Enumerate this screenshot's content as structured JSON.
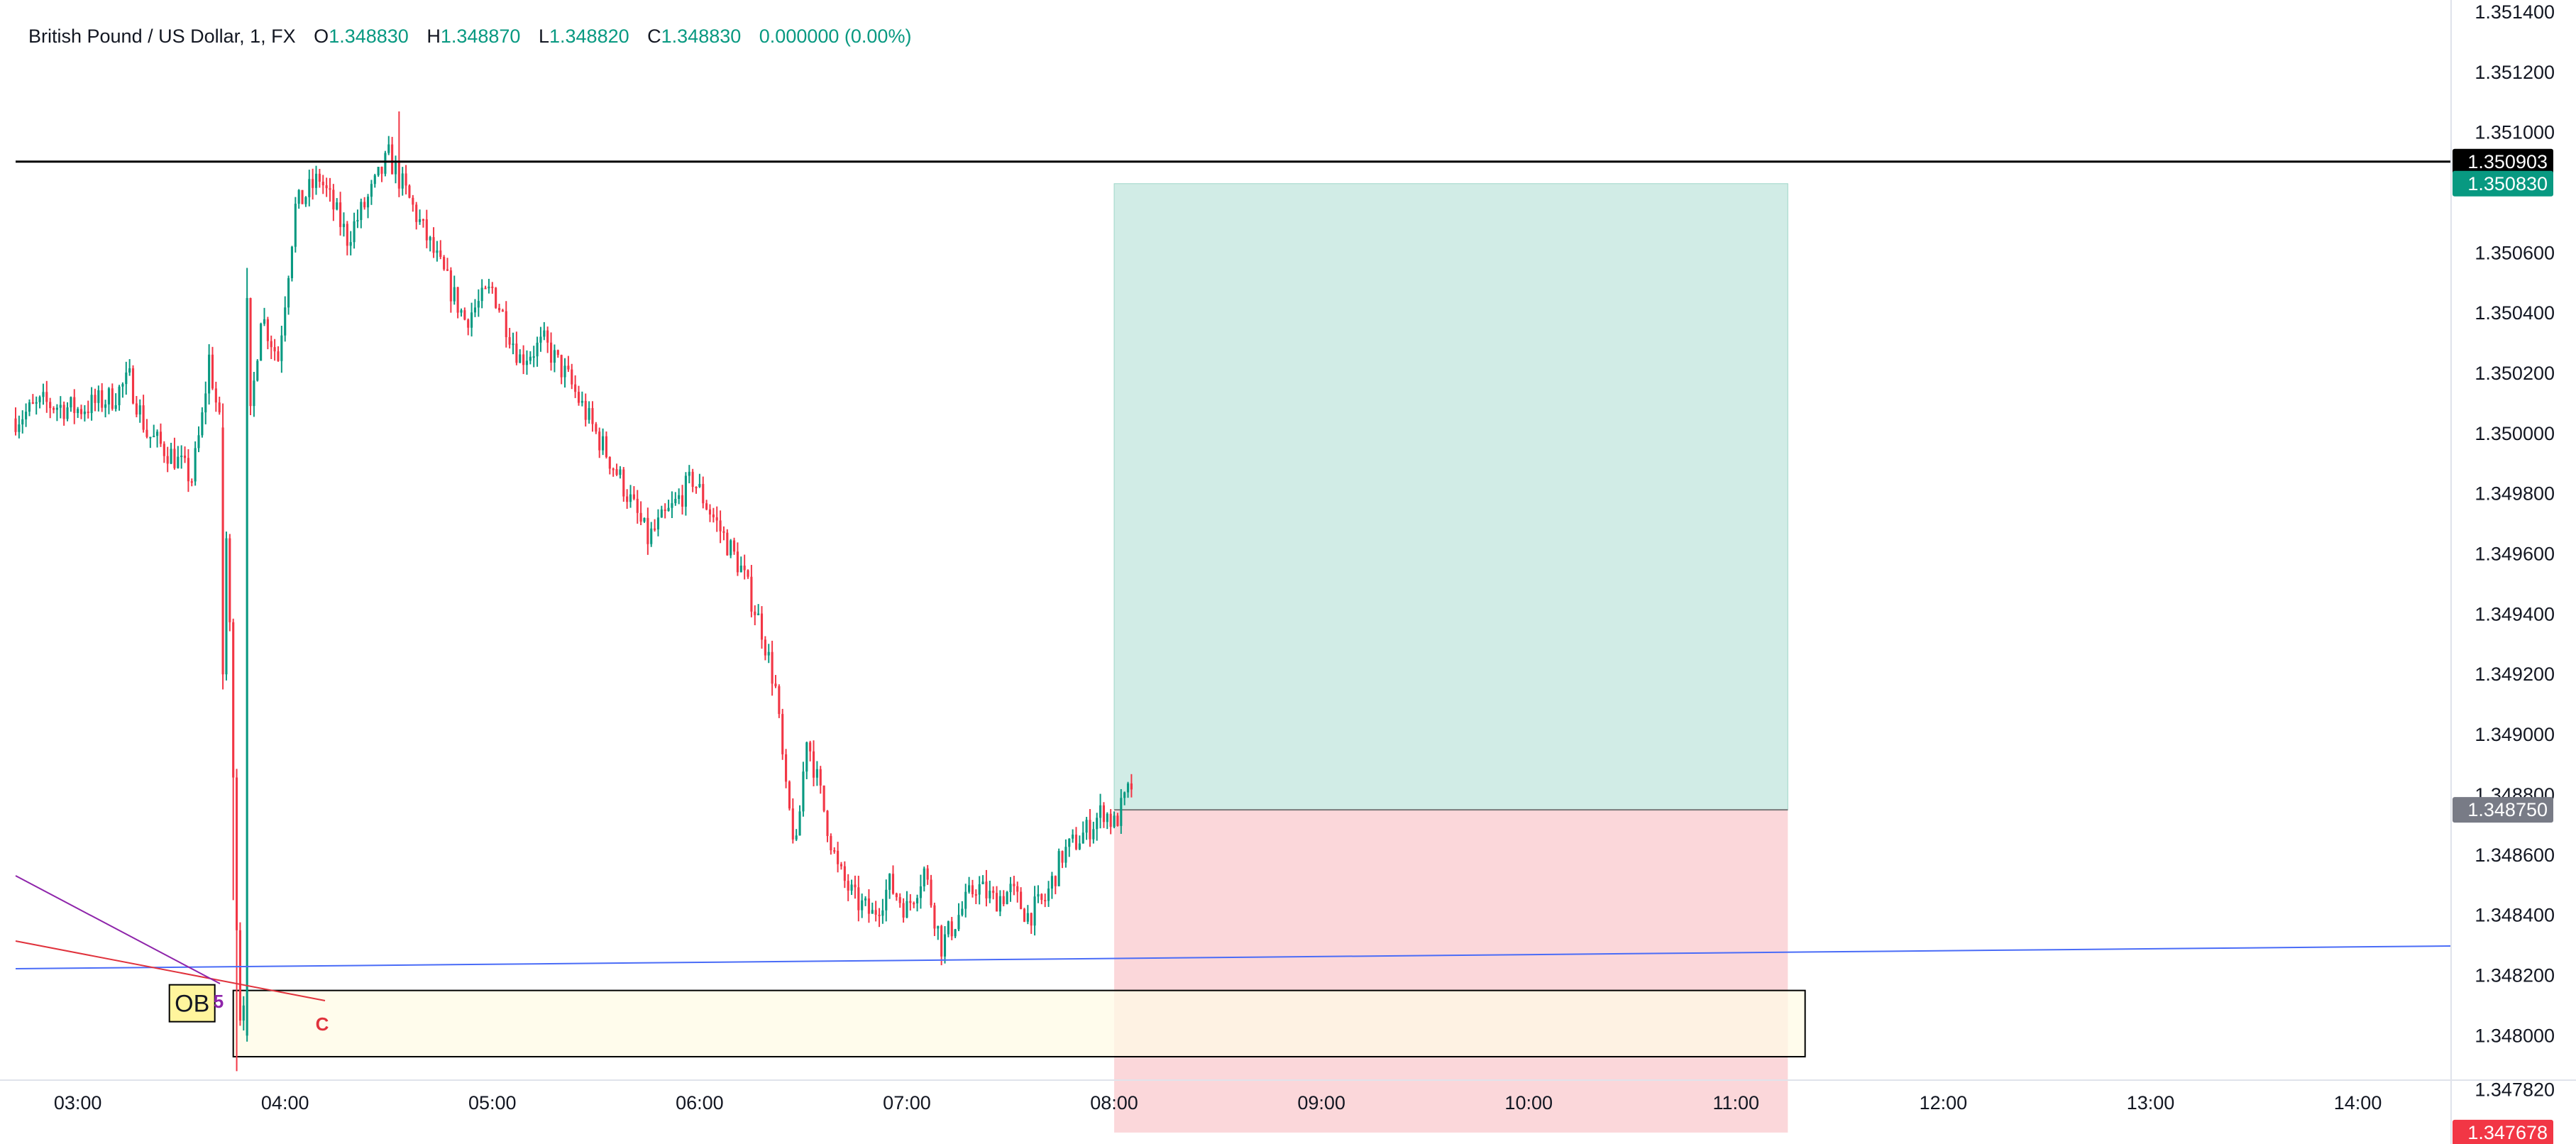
{
  "symbol": {
    "title": "British Pound / US Dollar, 1, FX",
    "open_label": "O",
    "open": "1.348830",
    "high_label": "H",
    "high": "1.348870",
    "low_label": "L",
    "low": "1.348820",
    "close_label": "C",
    "close": "1.348830",
    "change": "0.000000 (0.00%)"
  },
  "colors": {
    "up": "#089981",
    "down": "#f23645",
    "profit_zone": "#d1ece6",
    "loss_zone": "#fbd7da",
    "ob_fill": "#fffbe5",
    "trendline": "#4a6cf7",
    "wave_line_red": "#e0323c",
    "wave_line_purple": "#8e24aa"
  },
  "price_axis": {
    "ticks": [
      "1.351400",
      "1.351200",
      "1.351000",
      "1.350600",
      "1.350400",
      "1.350200",
      "1.350000",
      "1.349800",
      "1.349600",
      "1.349400",
      "1.349200",
      "1.349000",
      "1.348800",
      "1.348600",
      "1.348400",
      "1.348200",
      "1.348000",
      "1.347820"
    ]
  },
  "time_axis": {
    "ticks": [
      "03:00",
      "04:00",
      "05:00",
      "06:00",
      "07:00",
      "08:00",
      "09:00",
      "10:00",
      "11:00",
      "12:00",
      "13:00",
      "14:00"
    ]
  },
  "price_tags": {
    "horizontal_line": "1.350903",
    "take_profit": "1.350830",
    "entry": "1.348750",
    "stop_loss": "1.347678"
  },
  "annotations": {
    "order_block": "OB",
    "wave_5": "5",
    "wave_c": "C"
  },
  "chart_data": {
    "type": "candlestick",
    "symbol": "British Pound / US Dollar",
    "interval": "1",
    "x_range": [
      "02:42",
      "14:27"
    ],
    "y_range": [
      1.34764,
      1.35144
    ],
    "horizontal_line": 1.350903,
    "position": {
      "entry": 1.34875,
      "take_profit": 1.35083,
      "stop_loss": 1.347678,
      "start": "08:00",
      "end": "11:15"
    },
    "order_block": {
      "start": "03:45",
      "end": "11:20",
      "top": 1.34815,
      "bottom": 1.34793
    },
    "price_path": [
      {
        "t": "02:42",
        "p": 1.35005
      },
      {
        "t": "02:50",
        "p": 1.3501
      },
      {
        "t": "03:00",
        "p": 1.35008
      },
      {
        "t": "03:10",
        "p": 1.35012
      },
      {
        "t": "03:15",
        "p": 1.35018
      },
      {
        "t": "03:20",
        "p": 1.35
      },
      {
        "t": "03:28",
        "p": 1.34992
      },
      {
        "t": "03:33",
        "p": 1.34985
      },
      {
        "t": "03:36",
        "p": 1.35005
      },
      {
        "t": "03:38",
        "p": 1.35025
      },
      {
        "t": "03:41",
        "p": 1.35003
      },
      {
        "t": "03:43",
        "p": 1.34965
      },
      {
        "t": "03:44",
        "p": 1.34935
      },
      {
        "t": "03:45",
        "p": 1.3489
      },
      {
        "t": "03:46",
        "p": 1.34835
      },
      {
        "t": "03:47",
        "p": 1.34805
      },
      {
        "t": "03:48",
        "p": 1.3481
      },
      {
        "t": "03:49",
        "p": 1.3489
      },
      {
        "t": "03:50",
        "p": 1.35005
      },
      {
        "t": "03:53",
        "p": 1.3504
      },
      {
        "t": "03:58",
        "p": 1.35025
      },
      {
        "t": "04:03",
        "p": 1.35075
      },
      {
        "t": "04:10",
        "p": 1.35085
      },
      {
        "t": "04:18",
        "p": 1.35065
      },
      {
        "t": "04:25",
        "p": 1.3508
      },
      {
        "t": "04:30",
        "p": 1.35092
      },
      {
        "t": "04:37",
        "p": 1.35075
      },
      {
        "t": "04:45",
        "p": 1.35055
      },
      {
        "t": "04:52",
        "p": 1.35038
      },
      {
        "t": "05:00",
        "p": 1.35048
      },
      {
        "t": "05:08",
        "p": 1.35025
      },
      {
        "t": "05:15",
        "p": 1.3503
      },
      {
        "t": "05:22",
        "p": 1.35018
      },
      {
        "t": "05:30",
        "p": 1.35
      },
      {
        "t": "05:37",
        "p": 1.34985
      },
      {
        "t": "05:45",
        "p": 1.34965
      },
      {
        "t": "05:52",
        "p": 1.34975
      },
      {
        "t": "05:58",
        "p": 1.34985
      },
      {
        "t": "06:05",
        "p": 1.3497
      },
      {
        "t": "06:12",
        "p": 1.34955
      },
      {
        "t": "06:18",
        "p": 1.34935
      },
      {
        "t": "06:22",
        "p": 1.34915
      },
      {
        "t": "06:25",
        "p": 1.3488
      },
      {
        "t": "06:28",
        "p": 1.34862
      },
      {
        "t": "06:31",
        "p": 1.349
      },
      {
        "t": "06:35",
        "p": 1.3488
      },
      {
        "t": "06:40",
        "p": 1.34855
      },
      {
        "t": "06:45",
        "p": 1.34845
      },
      {
        "t": "06:50",
        "p": 1.3484
      },
      {
        "t": "06:55",
        "p": 1.3485
      },
      {
        "t": "07:00",
        "p": 1.34842
      },
      {
        "t": "07:05",
        "p": 1.34855
      },
      {
        "t": "07:10",
        "p": 1.3483
      },
      {
        "t": "07:15",
        "p": 1.3484
      },
      {
        "t": "07:20",
        "p": 1.3485
      },
      {
        "t": "07:25",
        "p": 1.34845
      },
      {
        "t": "07:30",
        "p": 1.34848
      },
      {
        "t": "07:35",
        "p": 1.3484
      },
      {
        "t": "07:40",
        "p": 1.34845
      },
      {
        "t": "07:45",
        "p": 1.3486
      },
      {
        "t": "07:52",
        "p": 1.34868
      },
      {
        "t": "07:57",
        "p": 1.34875
      },
      {
        "t": "08:00",
        "p": 1.3487
      },
      {
        "t": "08:05",
        "p": 1.34883
      }
    ]
  }
}
